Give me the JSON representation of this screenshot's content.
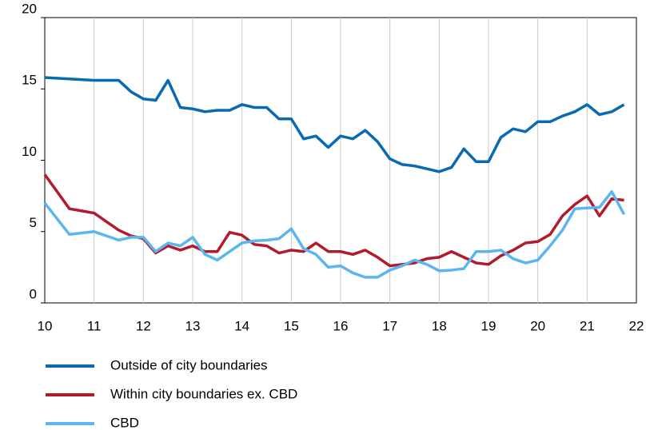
{
  "chart_data": {
    "type": "line",
    "x": [
      10,
      10.25,
      10.5,
      10.75,
      11,
      11.25,
      11.5,
      11.75,
      12,
      12.25,
      12.5,
      12.75,
      13,
      13.25,
      13.5,
      13.75,
      14,
      14.25,
      14.5,
      14.75,
      15,
      15.25,
      15.5,
      15.75,
      16,
      16.25,
      16.5,
      16.75,
      17,
      17.25,
      17.5,
      17.75,
      18,
      18.25,
      18.5,
      18.75,
      19,
      19.25,
      19.5,
      19.75,
      20,
      20.25,
      20.5,
      20.75,
      21,
      21.25,
      21.5,
      21.75
    ],
    "series": [
      {
        "name": "Outside of city boundaries",
        "color": "#0a6ab0",
        "values": [
          15.8,
          15.75,
          15.7,
          15.65,
          15.6,
          15.6,
          15.6,
          14.8,
          14.3,
          14.2,
          15.6,
          13.7,
          13.6,
          13.4,
          13.5,
          13.5,
          13.9,
          13.7,
          13.7,
          12.9,
          12.9,
          11.5,
          11.7,
          10.9,
          11.7,
          11.5,
          12.1,
          11.3,
          10.1,
          9.7,
          9.6,
          9.4,
          9.2,
          9.5,
          10.8,
          9.9,
          9.9,
          11.6,
          12.2,
          12.0,
          12.7,
          12.7,
          13.1,
          13.4,
          13.9,
          13.2,
          13.4,
          13.9
        ]
      },
      {
        "name": "Within city boundaries ex. CBD",
        "color": "#b01c2e",
        "values": [
          9.0,
          7.8,
          6.6,
          6.45,
          6.3,
          5.7,
          5.1,
          4.7,
          4.5,
          3.5,
          4.0,
          3.7,
          4.0,
          3.6,
          3.6,
          4.95,
          4.75,
          4.1,
          4.0,
          3.5,
          3.7,
          3.6,
          4.2,
          3.6,
          3.6,
          3.4,
          3.7,
          3.2,
          2.6,
          2.7,
          2.8,
          3.1,
          3.2,
          3.6,
          3.2,
          2.8,
          2.7,
          3.3,
          3.7,
          4.2,
          4.3,
          4.8,
          6.1,
          6.9,
          7.5,
          6.1,
          7.3,
          7.2
        ]
      },
      {
        "name": "CBD",
        "color": "#5bb5f0",
        "values": [
          7.0,
          5.9,
          4.8,
          4.9,
          5.0,
          4.7,
          4.4,
          4.6,
          4.6,
          3.6,
          4.2,
          4.0,
          4.6,
          3.4,
          3.0,
          3.6,
          4.2,
          4.35,
          4.4,
          4.5,
          5.2,
          3.8,
          3.4,
          2.5,
          2.6,
          2.1,
          1.8,
          1.8,
          2.3,
          2.6,
          3.0,
          2.7,
          2.25,
          2.3,
          2.4,
          3.6,
          3.6,
          3.7,
          3.1,
          2.8,
          3.0,
          4.0,
          5.1,
          6.6,
          6.65,
          6.7,
          7.8,
          6.2
        ]
      }
    ],
    "xlim": [
      10,
      22
    ],
    "xticks": [
      10,
      11,
      12,
      13,
      14,
      15,
      16,
      17,
      18,
      19,
      20,
      21,
      22
    ],
    "ylim": [
      0,
      20
    ],
    "yticks": [
      0,
      5,
      10,
      15,
      20
    ],
    "grid": "x"
  }
}
